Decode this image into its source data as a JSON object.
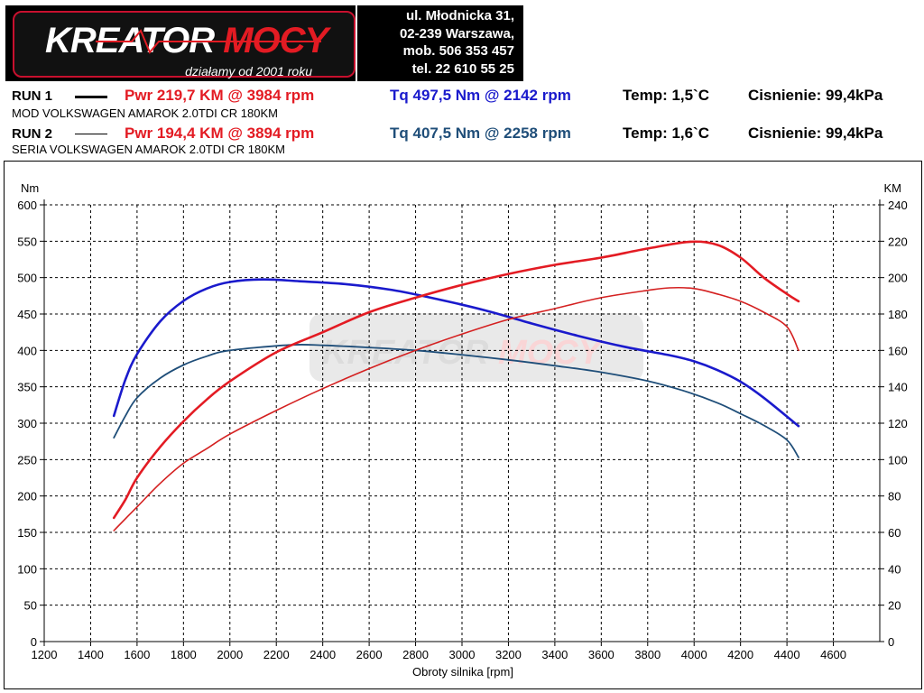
{
  "logo": {
    "brand_text": "KREATOR MOCY",
    "tagline": "działamy od 2001 roku"
  },
  "contact": {
    "line1": "ul. Młodnicka 31,",
    "line2": "02-239  Warszawa,",
    "line3": "mob.  506 353 457",
    "line4": "tel.  22 610 55 25"
  },
  "runs": [
    {
      "label": "RUN 1",
      "pwr": "Pwr  219,7 KM @ 3984 rpm",
      "tq": "Tq 497,5 Nm @ 2142 rpm",
      "temp": "Temp: 1,5`C",
      "pressure": "Cisnienie: 99,4kPa",
      "description": "MOD VOLKSWAGEN AMAROK 2.0TDI CR 180KM",
      "tq_color": "#1a1acc"
    },
    {
      "label": "RUN 2",
      "pwr": "Pwr  194,4 KM @ 3894 rpm",
      "tq": "Tq 407,5 Nm @ 2258 rpm",
      "temp": "Temp: 1,6`C",
      "pressure": "Cisnienie: 99,4kPa",
      "description": "SERIA VOLKSWAGEN AMAROK 2.0TDI CR 180KM",
      "tq_color": "#1f4e79"
    }
  ],
  "chart_data": {
    "type": "line",
    "xlabel": "Obroty silnika [rpm]",
    "ylabel_left": "Nm",
    "ylabel_right": "KM",
    "xlim": [
      1200,
      4800
    ],
    "ylim_left": [
      0,
      600
    ],
    "ylim_right": [
      0,
      240
    ],
    "x_ticks": [
      1200,
      1400,
      1600,
      1800,
      2000,
      2200,
      2400,
      2600,
      2800,
      3000,
      3200,
      3400,
      3600,
      3800,
      4000,
      4200,
      4400,
      4600
    ],
    "y_ticks_left": [
      0,
      50,
      100,
      150,
      200,
      250,
      300,
      350,
      400,
      450,
      500,
      550,
      600
    ],
    "y_ticks_right": [
      0,
      20,
      40,
      60,
      80,
      100,
      120,
      140,
      160,
      180,
      200,
      220,
      240
    ],
    "grid": true,
    "series": [
      {
        "name": "Tq RUN 1",
        "axis": "left",
        "color": "#1a1acc",
        "width": 2.6,
        "x": [
          1500,
          1550,
          1600,
          1700,
          1800,
          1900,
          2000,
          2142,
          2300,
          2500,
          2700,
          2900,
          3100,
          3300,
          3500,
          3700,
          3900,
          4000,
          4100,
          4200,
          4300,
          4450
        ],
        "y": [
          310,
          360,
          395,
          440,
          468,
          485,
          494,
          497.5,
          495,
          491,
          483,
          470,
          455,
          437,
          420,
          405,
          393,
          385,
          373,
          357,
          335,
          296
        ]
      },
      {
        "name": "Tq RUN 2",
        "axis": "left",
        "color": "#1f4e79",
        "width": 1.8,
        "x": [
          1500,
          1550,
          1600,
          1700,
          1800,
          1900,
          2000,
          2258,
          2400,
          2600,
          2800,
          3000,
          3200,
          3400,
          3600,
          3800,
          3950,
          4100,
          4200,
          4300,
          4400,
          4450
        ],
        "y": [
          280,
          310,
          335,
          362,
          380,
          392,
          400,
          407.5,
          407,
          404,
          400,
          394,
          387,
          379,
          370,
          358,
          345,
          328,
          313,
          297,
          277,
          253
        ]
      },
      {
        "name": "Pwr RUN 1",
        "axis": "right",
        "color": "#e31b23",
        "width": 2.6,
        "x": [
          1500,
          1550,
          1600,
          1700,
          1800,
          1900,
          2000,
          2200,
          2400,
          2600,
          2800,
          3000,
          3200,
          3400,
          3600,
          3800,
          3984,
          4100,
          4200,
          4300,
          4400,
          4450
        ],
        "y": [
          68,
          78,
          90,
          107,
          121,
          133,
          143,
          159,
          170,
          181,
          189,
          196,
          202,
          207,
          211,
          216,
          219.7,
          218,
          211,
          200,
          191,
          187
        ]
      },
      {
        "name": "Pwr RUN 2",
        "axis": "right",
        "color": "#d42020",
        "width": 1.6,
        "x": [
          1500,
          1600,
          1700,
          1800,
          1900,
          2000,
          2200,
          2400,
          2600,
          2800,
          3000,
          3200,
          3400,
          3600,
          3800,
          3894,
          4000,
          4100,
          4200,
          4300,
          4400,
          4450
        ],
        "y": [
          61,
          74,
          87,
          98,
          106,
          114,
          127,
          139,
          150,
          160,
          169,
          177,
          183,
          189,
          193,
          194.4,
          194,
          191,
          187,
          181,
          173,
          160
        ]
      }
    ]
  }
}
